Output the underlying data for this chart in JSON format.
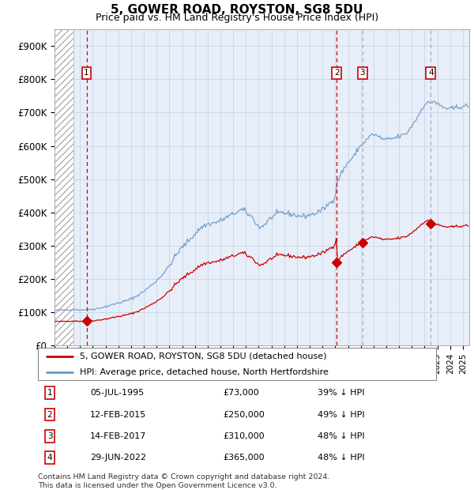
{
  "title": "5, GOWER ROAD, ROYSTON, SG8 5DU",
  "subtitle": "Price paid vs. HM Land Registry's House Price Index (HPI)",
  "ylabel_ticks": [
    "£0",
    "£100K",
    "£200K",
    "£300K",
    "£400K",
    "£500K",
    "£600K",
    "£700K",
    "£800K",
    "£900K"
  ],
  "ytick_values": [
    0,
    100000,
    200000,
    300000,
    400000,
    500000,
    600000,
    700000,
    800000,
    900000
  ],
  "ylim": [
    0,
    950000
  ],
  "xlim_start": 1993.0,
  "xlim_end": 2025.5,
  "hatch_end": 1994.5,
  "sales": [
    {
      "num": 1,
      "date_x": 1995.51,
      "price": 73000,
      "label": "05-JUL-1995",
      "price_str": "£73,000",
      "hpi_str": "39% ↓ HPI",
      "vline_color": "#cc0000",
      "vline_style": "--"
    },
    {
      "num": 2,
      "date_x": 2015.12,
      "price": 250000,
      "label": "12-FEB-2015",
      "price_str": "£250,000",
      "hpi_str": "49% ↓ HPI",
      "vline_color": "#cc0000",
      "vline_style": "--"
    },
    {
      "num": 3,
      "date_x": 2017.12,
      "price": 310000,
      "label": "14-FEB-2017",
      "price_str": "£310,000",
      "hpi_str": "48% ↓ HPI",
      "vline_color": "#aaaacc",
      "vline_style": "--"
    },
    {
      "num": 4,
      "date_x": 2022.49,
      "price": 365000,
      "label": "29-JUN-2022",
      "price_str": "£365,000",
      "hpi_str": "48% ↓ HPI",
      "vline_color": "#aaaacc",
      "vline_style": "--"
    }
  ],
  "legend_line1": "5, GOWER ROAD, ROYSTON, SG8 5DU (detached house)",
  "legend_line2": "HPI: Average price, detached house, North Hertfordshire",
  "footnote": "Contains HM Land Registry data © Crown copyright and database right 2024.\nThis data is licensed under the Open Government Licence v3.0.",
  "sale_color": "#cc0000",
  "hpi_color": "#6699cc",
  "grid_color": "#cccccc",
  "plot_bg": "#e8eef8"
}
